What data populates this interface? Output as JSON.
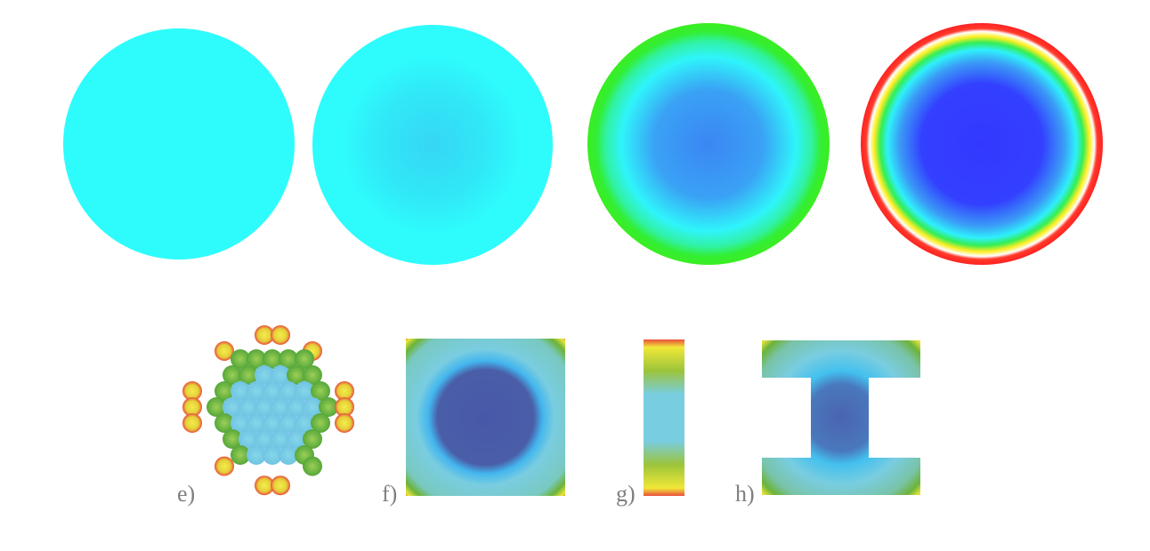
{
  "labels": {
    "e": "e)",
    "f": "f)",
    "g": "g)",
    "h": "h)"
  },
  "colors": {
    "cyan": "#2efcfc",
    "light_blue": "#36d8f2",
    "mid_blue": "#3c8cf4",
    "deep_blue": "#3338ff",
    "green": "#33ee22",
    "yellow": "#ffee22",
    "red": "#ff2a2a",
    "muted_dark_blue": "#4a5ea8",
    "muted_light_blue": "#79cde0",
    "muted_green": "#6cb33a",
    "muted_yellow": "#e8e63a",
    "muted_red": "#e94f3b"
  }
}
